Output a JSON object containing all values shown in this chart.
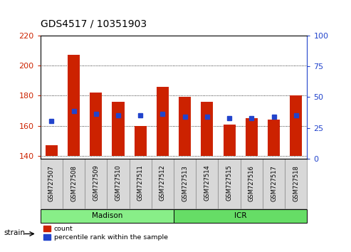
{
  "title": "GDS4517 / 10351903",
  "samples": [
    "GSM727507",
    "GSM727508",
    "GSM727509",
    "GSM727510",
    "GSM727511",
    "GSM727512",
    "GSM727513",
    "GSM727514",
    "GSM727515",
    "GSM727516",
    "GSM727517",
    "GSM727518"
  ],
  "bar_bottoms": [
    140,
    140,
    140,
    140,
    140,
    140,
    140,
    140,
    140,
    140,
    140,
    140
  ],
  "bar_tops": [
    147,
    207,
    182,
    176,
    160,
    186,
    179,
    176,
    161,
    165,
    164,
    180
  ],
  "blue_values_left_scale": [
    163,
    170,
    168,
    167,
    167,
    168,
    166,
    166,
    165,
    165,
    166,
    167
  ],
  "ylim_left": [
    138,
    220
  ],
  "yticks_left": [
    140,
    160,
    180,
    200,
    220
  ],
  "ylim_right": [
    0,
    100
  ],
  "yticks_right": [
    0,
    25,
    50,
    75,
    100
  ],
  "bar_color": "#cc2200",
  "blue_color": "#2244cc",
  "bar_width": 0.55,
  "groups": [
    {
      "label": "Madison",
      "start": 0,
      "end": 6,
      "color": "#88ee88"
    },
    {
      "label": "ICR",
      "start": 6,
      "end": 12,
      "color": "#66dd66"
    }
  ],
  "strain_label": "strain",
  "legend_count_label": "count",
  "legend_pct_label": "percentile rank within the sample",
  "left_axis_color": "#cc2200",
  "right_axis_color": "#2244cc",
  "grid_color": "#000000",
  "ticklabel_bg": "#d8d8d8",
  "title_fontsize": 10,
  "tick_fontsize": 8,
  "bar_tick_fontsize": 6
}
